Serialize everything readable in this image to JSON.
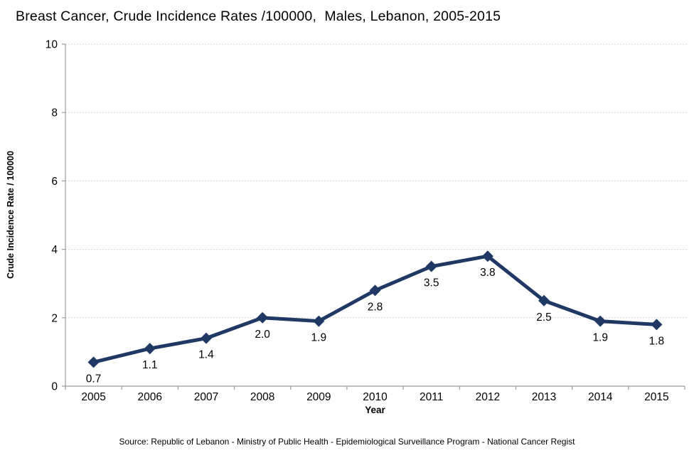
{
  "chart_data": {
    "type": "line",
    "title": "Breast Cancer, Crude Incidence Rates /100000,  Males, Lebanon, 2005-2015",
    "xlabel": "Year",
    "ylabel": "Crude Incidence Rate / 100000",
    "categories": [
      "2005",
      "2006",
      "2007",
      "2008",
      "2009",
      "2010",
      "2011",
      "2012",
      "2013",
      "2014",
      "2015"
    ],
    "series": [
      {
        "name": "Crude Incidence Rate / 100000",
        "values": [
          0.7,
          1.1,
          1.4,
          2.0,
          1.9,
          2.8,
          3.5,
          3.8,
          2.5,
          1.9,
          1.8
        ]
      }
    ],
    "data_labels_shown": true,
    "data_label_decimals": 1,
    "ylim": [
      0,
      10
    ],
    "yticks": [
      0,
      2,
      4,
      6,
      8,
      10
    ],
    "grid": "horizontal dotted",
    "legend_position": "none",
    "marker": "diamond",
    "colors": {
      "line": "#1F3864",
      "marker": "#1F3864",
      "gridline": "#C6C6C6",
      "axis": "#9B9B9B",
      "text": "#000000"
    }
  },
  "footer": {
    "source": "Source: Republic of Lebanon - Ministry of Public Health - Epidemiological Surveillance Program - National Cancer Regist"
  }
}
